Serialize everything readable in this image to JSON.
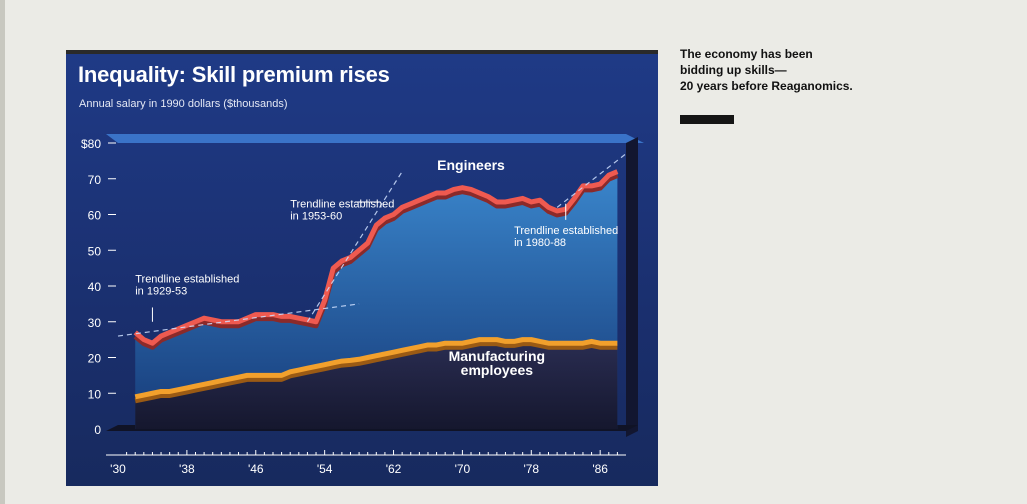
{
  "headline": {
    "lines": [
      "The economy has been",
      "bidding up skills—",
      "20 years before Reaganomics."
    ]
  },
  "chart_data": {
    "type": "area",
    "title": "Inequality: Skill premium rises",
    "ylabel": "Annual salary in 1990 dollars ($thousands)",
    "xlim": [
      1930,
      1989
    ],
    "ylim": [
      0,
      80
    ],
    "yticks": [
      0,
      10,
      20,
      30,
      40,
      50,
      60,
      70,
      80
    ],
    "ytick_labels": [
      "0",
      "10",
      "20",
      "30",
      "40",
      "50",
      "60",
      "70",
      "$80"
    ],
    "xticks": [
      1930,
      1938,
      1946,
      1954,
      1962,
      1970,
      1978,
      1986
    ],
    "xtick_labels": [
      "'30",
      "'38",
      "'46",
      "'54",
      "'62",
      "'70",
      "'78",
      "'86"
    ],
    "grid": false,
    "legend": "none",
    "series": [
      {
        "name": "Engineers",
        "color": "#ef5a50",
        "fill": "#2a6fb8",
        "x": [
          1932,
          1933,
          1934,
          1935,
          1936,
          1937,
          1938,
          1939,
          1940,
          1941,
          1942,
          1943,
          1944,
          1945,
          1946,
          1947,
          1948,
          1949,
          1950,
          1951,
          1952,
          1953,
          1954,
          1955,
          1956,
          1957,
          1958,
          1959,
          1960,
          1961,
          1962,
          1963,
          1964,
          1965,
          1966,
          1967,
          1968,
          1969,
          1970,
          1971,
          1972,
          1973,
          1974,
          1975,
          1976,
          1977,
          1978,
          1979,
          1980,
          1981,
          1982,
          1983,
          1984,
          1985,
          1986,
          1987,
          1988
        ],
        "values": [
          27,
          25,
          24,
          26,
          27,
          28,
          29,
          30,
          31,
          30.5,
          30,
          30,
          30,
          31,
          32,
          32,
          32,
          31.5,
          31.5,
          31,
          30.5,
          30,
          36,
          45,
          47,
          48,
          50,
          52,
          57,
          59,
          60,
          62,
          63,
          64,
          65,
          66,
          66,
          67,
          67.5,
          67,
          66,
          65,
          63.5,
          63.5,
          64,
          64.5,
          63.5,
          64,
          62,
          61,
          61.5,
          64.5,
          68,
          68,
          68.5,
          71,
          72
        ]
      },
      {
        "name": "Manufacturing employees",
        "color": "#f2a02c",
        "fill": "#1c1f3c",
        "x": [
          1932,
          1933,
          1934,
          1935,
          1936,
          1937,
          1938,
          1939,
          1940,
          1941,
          1942,
          1943,
          1944,
          1945,
          1946,
          1947,
          1948,
          1949,
          1950,
          1951,
          1952,
          1953,
          1954,
          1955,
          1956,
          1957,
          1958,
          1959,
          1960,
          1961,
          1962,
          1963,
          1964,
          1965,
          1966,
          1967,
          1968,
          1969,
          1970,
          1971,
          1972,
          1973,
          1974,
          1975,
          1976,
          1977,
          1978,
          1979,
          1980,
          1981,
          1982,
          1983,
          1984,
          1985,
          1986,
          1987,
          1988
        ],
        "values": [
          9,
          9.5,
          10,
          10.5,
          10.5,
          11,
          11.5,
          12,
          12.5,
          13,
          13.5,
          14,
          14.5,
          15,
          15,
          15,
          15,
          15,
          16,
          16.5,
          17,
          17.5,
          18,
          18.5,
          19,
          19.2,
          19.5,
          20,
          20.5,
          21,
          21.5,
          22,
          22.5,
          23,
          23.5,
          23.5,
          24,
          24,
          24,
          24.5,
          25,
          25,
          25,
          24.5,
          24.5,
          25,
          25,
          24.5,
          24,
          24,
          24,
          24,
          24,
          24.5,
          24,
          24,
          24
        ]
      }
    ],
    "series_labels": [
      {
        "lines": [
          "Engineers"
        ],
        "x": 1971,
        "y": 72.5
      },
      {
        "lines": [
          "Manufacturing",
          "employees"
        ],
        "x": 1974,
        "y": 19
      }
    ],
    "trendlines": [
      {
        "label": "Trendline established in 1929-53",
        "from": [
          1930,
          26
        ],
        "to": [
          1958,
          35
        ]
      },
      {
        "label": "Trendline established in 1953-60",
        "from": [
          1952,
          30
        ],
        "to": [
          1963,
          72
        ]
      },
      {
        "label": "Trendline established in 1980-88",
        "from": [
          1981,
          62
        ],
        "to": [
          1989,
          77
        ]
      }
    ],
    "annotations": [
      {
        "lines": [
          "Trendline established",
          "in 1929-53"
        ],
        "x": 1932,
        "y": 41,
        "pointer": [
          1934,
          34,
          1934,
          30
        ]
      },
      {
        "lines": [
          "Trendline established",
          "in 1953-60"
        ],
        "x": 1950,
        "y": 62,
        "pointer": [
          1957.5,
          63.5,
          1960.5,
          63.5
        ]
      },
      {
        "lines": [
          "Trendline established",
          "in 1980-88"
        ],
        "x": 1976,
        "y": 54.5,
        "pointer": [
          1982,
          58.5,
          1982,
          63
        ]
      }
    ]
  }
}
